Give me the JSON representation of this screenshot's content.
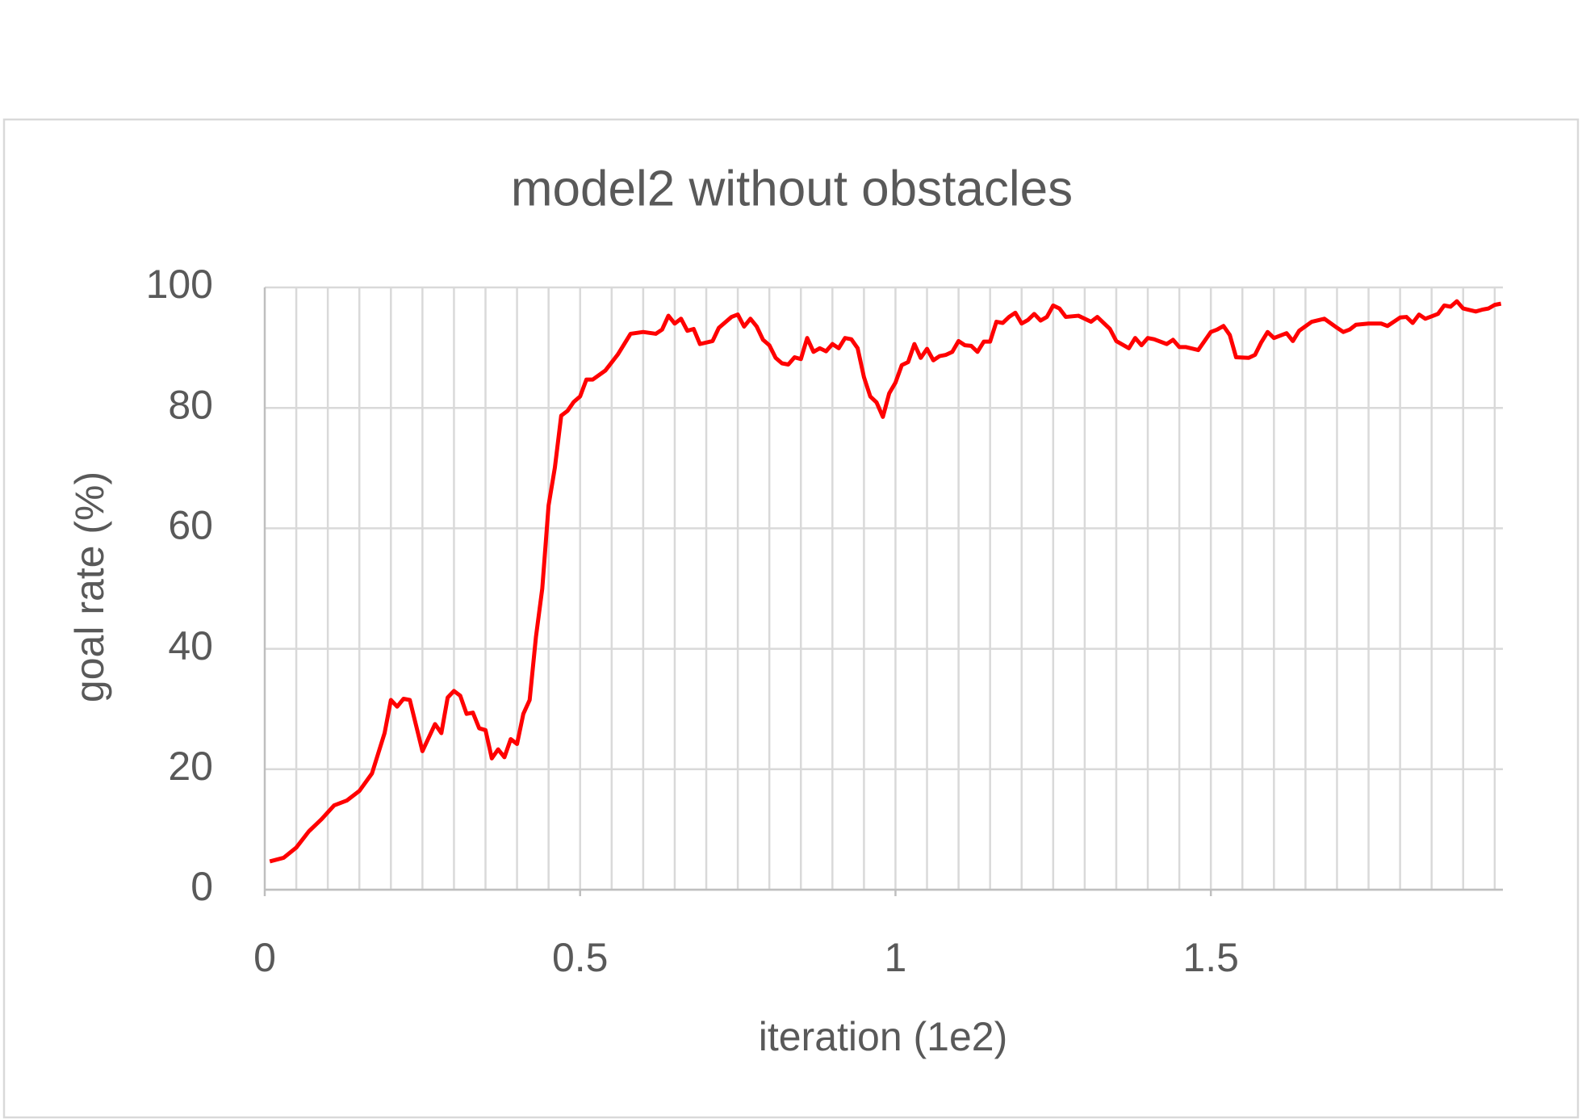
{
  "chart_data": {
    "type": "line",
    "title": "model2 without obstacles",
    "x_label": "iteration (1e2)",
    "y_label": "goal rate (%)",
    "xlim": [
      0,
      1.963
    ],
    "xticks": [
      0,
      0.5,
      1,
      1.5
    ],
    "ylim": [
      0,
      100
    ],
    "yticks": [
      0,
      20,
      40,
      60,
      80,
      100
    ],
    "grid": true,
    "xgrid": [
      0.05,
      0.1,
      0.15,
      0.2,
      0.25,
      0.3,
      0.35,
      0.4,
      0.45,
      0.5,
      0.55,
      0.6,
      0.65,
      0.7,
      0.75,
      0.8,
      0.85,
      0.9,
      0.95,
      1,
      1.05,
      1.1,
      1.15,
      1.2,
      1.25,
      1.3,
      1.35,
      1.4,
      1.45,
      1.5,
      1.55,
      1.6,
      1.65,
      1.7,
      1.75,
      1.8,
      1.85,
      1.9,
      1.95
    ],
    "color": "#ff0000",
    "x": [
      0.008,
      0.03,
      0.05,
      0.07,
      0.09,
      0.11,
      0.13,
      0.15,
      0.17,
      0.19,
      0.2,
      0.21,
      0.22,
      0.23,
      0.25,
      0.27,
      0.28,
      0.29,
      0.3,
      0.31,
      0.32,
      0.33,
      0.34,
      0.35,
      0.36,
      0.37,
      0.38,
      0.39,
      0.4,
      0.41,
      0.42,
      0.43,
      0.44,
      0.45,
      0.46,
      0.47,
      0.48,
      0.49,
      0.5,
      0.51,
      0.52,
      0.54,
      0.56,
      0.58,
      0.6,
      0.62,
      0.63,
      0.64,
      0.65,
      0.66,
      0.67,
      0.68,
      0.69,
      0.71,
      0.72,
      0.74,
      0.75,
      0.76,
      0.77,
      0.78,
      0.79,
      0.8,
      0.81,
      0.82,
      0.83,
      0.84,
      0.85,
      0.86,
      0.87,
      0.88,
      0.89,
      0.9,
      0.91,
      0.92,
      0.93,
      0.94,
      0.95,
      0.96,
      0.97,
      0.98,
      0.99,
      1.0,
      1.01,
      1.02,
      1.03,
      1.04,
      1.05,
      1.06,
      1.07,
      1.08,
      1.09,
      1.1,
      1.11,
      1.12,
      1.13,
      1.14,
      1.15,
      1.16,
      1.17,
      1.18,
      1.19,
      1.2,
      1.21,
      1.22,
      1.23,
      1.24,
      1.25,
      1.26,
      1.27,
      1.29,
      1.31,
      1.32,
      1.34,
      1.35,
      1.37,
      1.38,
      1.39,
      1.4,
      1.41,
      1.43,
      1.44,
      1.45,
      1.46,
      1.48,
      1.5,
      1.51,
      1.52,
      1.53,
      1.54,
      1.56,
      1.57,
      1.58,
      1.59,
      1.6,
      1.62,
      1.63,
      1.64,
      1.66,
      1.68,
      1.7,
      1.71,
      1.72,
      1.73,
      1.75,
      1.77,
      1.78,
      1.79,
      1.8,
      1.81,
      1.82,
      1.83,
      1.84,
      1.86,
      1.87,
      1.88,
      1.89,
      1.9,
      1.92,
      1.93,
      1.94,
      1.95,
      1.96
    ],
    "values": [
      4.7,
      5.3,
      7,
      9.7,
      11.7,
      14,
      14.8,
      16.4,
      19.3,
      26,
      31.5,
      30.4,
      31.7,
      31.5,
      23,
      27.5,
      26,
      31.9,
      33,
      32.2,
      29.2,
      29.4,
      26.8,
      26.5,
      21.8,
      23.3,
      22,
      25,
      24.2,
      29.2,
      31.5,
      42,
      50,
      63.8,
      70.1,
      78.7,
      79.5,
      81,
      81.9,
      84.7,
      84.7,
      86.2,
      88.9,
      92.3,
      92.6,
      92.3,
      93,
      95.3,
      94,
      94.8,
      92.8,
      93.1,
      90.6,
      91.1,
      93.3,
      95.1,
      95.5,
      93.5,
      94.8,
      93.5,
      91.3,
      90.4,
      88.3,
      87.4,
      87.2,
      88.4,
      88.1,
      91.6,
      89.3,
      89.9,
      89.4,
      90.6,
      89.9,
      91.6,
      91.4,
      89.9,
      85.1,
      81.9,
      80.9,
      78.5,
      82.4,
      84.2,
      87.1,
      87.6,
      90.6,
      88.3,
      89.8,
      87.9,
      88.6,
      88.8,
      89.3,
      91.1,
      90.4,
      90.3,
      89.3,
      91,
      91,
      94.3,
      94.1,
      95.1,
      95.8,
      94,
      94.6,
      95.6,
      94.5,
      95.1,
      97,
      96.5,
      95.1,
      95.3,
      94.3,
      95.1,
      93.1,
      91.1,
      89.9,
      91.6,
      90.4,
      91.6,
      91.4,
      90.6,
      91.3,
      90.1,
      90.1,
      89.6,
      92.6,
      93,
      93.6,
      92.1,
      88.4,
      88.3,
      88.8,
      90.9,
      92.6,
      91.6,
      92.4,
      91.1,
      92.8,
      94.3,
      94.8,
      93.3,
      92.6,
      93,
      93.8,
      94,
      94,
      93.6,
      94.3,
      95,
      95.1,
      94.1,
      95.5,
      94.8,
      95.6,
      97,
      96.8,
      97.7,
      96.5,
      96,
      96.3,
      96.5,
      97.1,
      97.3
    ]
  }
}
